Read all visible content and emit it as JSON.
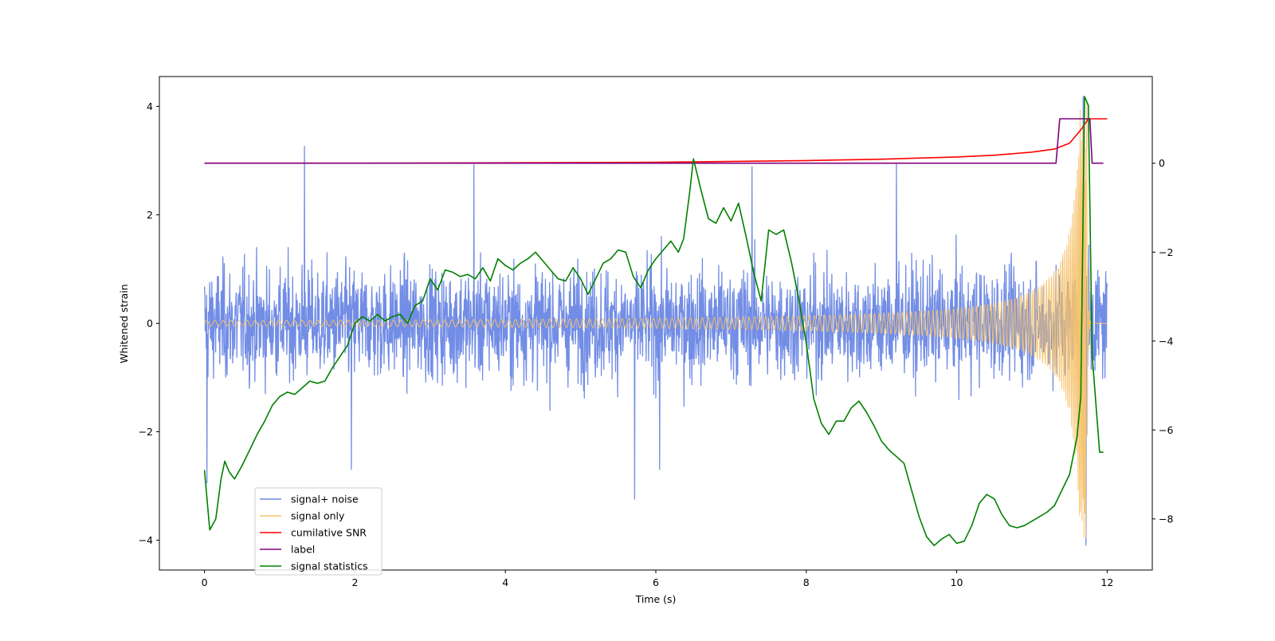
{
  "chart_data": {
    "type": "line",
    "title": "",
    "xlabel": "Time (s)",
    "ylabel": "Whitened strain",
    "ylabel_right": "",
    "xlim": [
      -0.6,
      12.6
    ],
    "ylim": [
      -4.55,
      4.55
    ],
    "ylim_right": [
      -9.15,
      1.95
    ],
    "x_ticks": [
      {
        "value": 0,
        "label": "0"
      },
      {
        "value": 2,
        "label": "2"
      },
      {
        "value": 4,
        "label": "4"
      },
      {
        "value": 6,
        "label": "6"
      },
      {
        "value": 8,
        "label": "8"
      },
      {
        "value": 10,
        "label": "10"
      },
      {
        "value": 12,
        "label": "12"
      }
    ],
    "y_ticks": [
      {
        "value": 4,
        "label": "4"
      },
      {
        "value": 2,
        "label": "2"
      },
      {
        "value": 0,
        "label": "0"
      },
      {
        "value": -2,
        "label": "−2"
      },
      {
        "value": -4,
        "label": "−4"
      }
    ],
    "y_ticks_right": [
      {
        "value": 0,
        "label": "0"
      },
      {
        "value": -2,
        "label": "−2"
      },
      {
        "value": -4,
        "label": "−4"
      },
      {
        "value": -6,
        "label": "−6"
      },
      {
        "value": -8,
        "label": "−8"
      }
    ],
    "legend_position": "lower-left",
    "series": [
      {
        "name": "signal+ noise",
        "axis": "left",
        "color": "#6a87e4",
        "style": "noise",
        "x_range": [
          0,
          12
        ],
        "envelope_amplitude": 1.6,
        "peaks": [
          {
            "x": 1.33,
            "y": 3.27
          },
          {
            "x": 3.58,
            "y": 2.93
          },
          {
            "x": 7.28,
            "y": 2.9
          },
          {
            "x": 9.2,
            "y": 2.95
          },
          {
            "x": 11.68,
            "y": 4.19
          },
          {
            "x": 11.72,
            "y": -4.1
          },
          {
            "x": 5.72,
            "y": -3.25
          },
          {
            "x": 1.95,
            "y": -2.7
          },
          {
            "x": 6.05,
            "y": -2.7
          },
          {
            "x": 0.03,
            "y": -2.95
          }
        ]
      },
      {
        "name": "signal only",
        "axis": "left",
        "color": "#f5c26b",
        "style": "chirp",
        "x_range": [
          0,
          12
        ],
        "merger_time": 11.73,
        "peak_amplitude": 4.1
      },
      {
        "name": "cumilative SNR",
        "axis": "right",
        "color": "#ff0000",
        "x": [
          0,
          2,
          4,
          6,
          8,
          9,
          10,
          10.5,
          11,
          11.3,
          11.5,
          11.65,
          11.75,
          12
        ],
        "y": [
          0,
          0,
          0.01,
          0.02,
          0.06,
          0.09,
          0.14,
          0.18,
          0.25,
          0.32,
          0.45,
          0.75,
          1.0,
          1.0
        ]
      },
      {
        "name": "label",
        "axis": "right",
        "color": "#800080",
        "x": [
          0,
          11.32,
          11.37,
          11.77,
          11.8,
          11.95
        ],
        "y": [
          0,
          0,
          1.0,
          1.0,
          0,
          0
        ]
      },
      {
        "name": "signal statistics",
        "axis": "right",
        "color": "#008000",
        "x": [
          0.0,
          0.07,
          0.15,
          0.22,
          0.27,
          0.33,
          0.4,
          0.5,
          0.6,
          0.7,
          0.8,
          0.9,
          1.0,
          1.1,
          1.2,
          1.3,
          1.4,
          1.5,
          1.6,
          1.7,
          1.8,
          1.9,
          2.0,
          2.1,
          2.2,
          2.3,
          2.4,
          2.5,
          2.6,
          2.7,
          2.8,
          2.9,
          3.0,
          3.1,
          3.2,
          3.3,
          3.4,
          3.5,
          3.6,
          3.7,
          3.8,
          3.9,
          4.0,
          4.1,
          4.2,
          4.3,
          4.4,
          4.5,
          4.6,
          4.7,
          4.8,
          4.9,
          5.0,
          5.1,
          5.2,
          5.3,
          5.4,
          5.5,
          5.6,
          5.7,
          5.8,
          5.9,
          6.0,
          6.1,
          6.2,
          6.3,
          6.37,
          6.45,
          6.5,
          6.6,
          6.7,
          6.8,
          6.9,
          7.0,
          7.1,
          7.2,
          7.3,
          7.4,
          7.5,
          7.6,
          7.7,
          7.8,
          7.9,
          8.0,
          8.1,
          8.2,
          8.3,
          8.4,
          8.5,
          8.6,
          8.7,
          8.8,
          8.9,
          9.0,
          9.1,
          9.2,
          9.3,
          9.4,
          9.5,
          9.6,
          9.7,
          9.8,
          9.9,
          10.0,
          10.1,
          10.2,
          10.3,
          10.4,
          10.5,
          10.6,
          10.7,
          10.8,
          10.9,
          11.0,
          11.1,
          11.2,
          11.3,
          11.4,
          11.5,
          11.6,
          11.65,
          11.7,
          11.75,
          11.8,
          11.9,
          11.95
        ],
        "y": [
          -6.9,
          -8.25,
          -8.0,
          -7.1,
          -6.7,
          -6.95,
          -7.1,
          -6.8,
          -6.45,
          -6.1,
          -5.8,
          -5.45,
          -5.25,
          -5.15,
          -5.2,
          -5.05,
          -4.9,
          -4.95,
          -4.9,
          -4.6,
          -4.35,
          -4.1,
          -3.6,
          -3.45,
          -3.55,
          -3.4,
          -3.55,
          -3.45,
          -3.4,
          -3.6,
          -3.2,
          -3.1,
          -2.6,
          -2.85,
          -2.4,
          -2.45,
          -2.55,
          -2.5,
          -2.6,
          -2.35,
          -2.65,
          -2.15,
          -2.3,
          -2.4,
          -2.25,
          -2.15,
          -2.0,
          -2.2,
          -2.4,
          -2.6,
          -2.65,
          -2.35,
          -2.6,
          -2.95,
          -2.6,
          -2.25,
          -2.15,
          -1.95,
          -2.0,
          -2.55,
          -2.8,
          -2.4,
          -2.15,
          -1.95,
          -1.75,
          -2.0,
          -1.7,
          -0.65,
          0.1,
          -0.6,
          -1.25,
          -1.35,
          -1.0,
          -1.3,
          -0.9,
          -1.65,
          -2.45,
          -3.1,
          -1.5,
          -1.6,
          -1.5,
          -2.2,
          -3.05,
          -4.05,
          -5.3,
          -5.85,
          -6.1,
          -5.8,
          -5.8,
          -5.5,
          -5.35,
          -5.6,
          -5.9,
          -6.25,
          -6.45,
          -6.6,
          -6.75,
          -7.35,
          -7.95,
          -8.4,
          -8.6,
          -8.45,
          -8.35,
          -8.55,
          -8.5,
          -8.15,
          -7.65,
          -7.45,
          -7.55,
          -7.9,
          -8.15,
          -8.2,
          -8.15,
          -8.05,
          -7.95,
          -7.85,
          -7.7,
          -7.35,
          -7.0,
          -6.15,
          -5.25,
          1.5,
          1.3,
          -4.3,
          -6.5,
          -6.5
        ]
      }
    ]
  }
}
